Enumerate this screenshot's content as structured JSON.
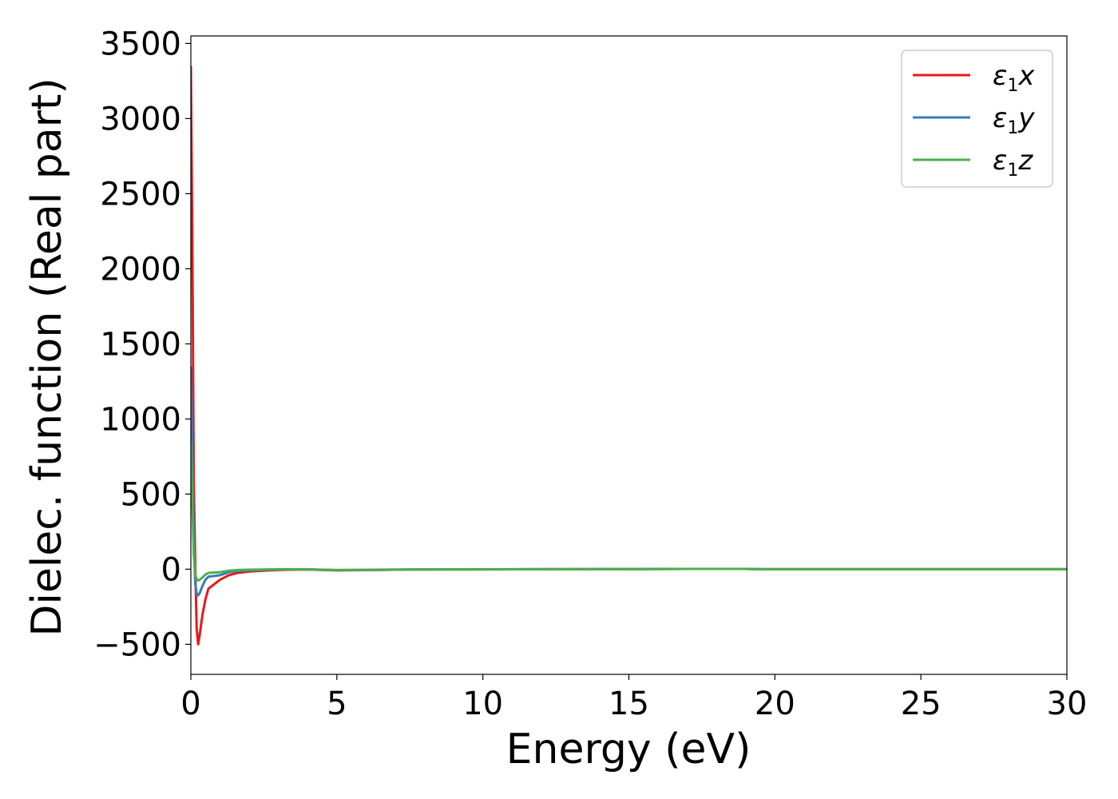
{
  "chart_data": {
    "type": "line",
    "title": "",
    "xlabel": "Energy (eV)",
    "ylabel": "Dielec. function (Real part)",
    "xlim": [
      0,
      30
    ],
    "ylim": [
      -700,
      3550
    ],
    "xticks": [
      0,
      5,
      10,
      15,
      20,
      25,
      30
    ],
    "yticks": [
      -500,
      0,
      500,
      1000,
      1500,
      2000,
      2500,
      3000,
      3500
    ],
    "ytick_labels": [
      "−500",
      "0",
      "500",
      "1000",
      "1500",
      "2000",
      "2500",
      "3000",
      "3500"
    ],
    "grid": false,
    "legend_position": "top-right",
    "series": [
      {
        "name": "ε1x",
        "name_symbol": "ε",
        "name_sub": "1",
        "name_var": "x",
        "color": "#e41a1c",
        "x": [
          0.0,
          0.05,
          0.1,
          0.15,
          0.2,
          0.25,
          0.3,
          0.4,
          0.5,
          0.6,
          0.8,
          1.0,
          1.3,
          1.6,
          2.0,
          2.5,
          3.0,
          3.5,
          4.0,
          4.5,
          5.0,
          6.0,
          7.0,
          8.0,
          10.0,
          12.0,
          15.0,
          17.0,
          19.0,
          19.5,
          20.0,
          25.0,
          30.0
        ],
        "y": [
          3350,
          2200,
          600,
          20,
          -400,
          -500,
          -440,
          -300,
          -200,
          -130,
          -100,
          -70,
          -40,
          -25,
          -15,
          -10,
          -5,
          -3,
          -2,
          -5,
          -8,
          -6,
          -3,
          -2,
          -1,
          0,
          1,
          2,
          2,
          0,
          0,
          0,
          0
        ]
      },
      {
        "name": "ε1y",
        "name_symbol": "ε",
        "name_sub": "1",
        "name_var": "y",
        "color": "#377eb8",
        "x": [
          0.0,
          0.05,
          0.1,
          0.15,
          0.2,
          0.25,
          0.3,
          0.4,
          0.5,
          0.6,
          0.8,
          1.0,
          1.3,
          1.6,
          2.0,
          2.5,
          3.0,
          3.5,
          4.0,
          4.5,
          5.0,
          6.0,
          7.0,
          8.0,
          10.0,
          12.0,
          15.0,
          17.0,
          19.0,
          19.5,
          20.0,
          25.0,
          30.0
        ],
        "y": [
          1350,
          800,
          200,
          -100,
          -160,
          -175,
          -160,
          -110,
          -70,
          -50,
          -45,
          -40,
          -20,
          -12,
          -8,
          -5,
          -2,
          -1,
          -1,
          -4,
          -6,
          -5,
          -3,
          -2,
          -1,
          0,
          1,
          2,
          2,
          0,
          0,
          0,
          0
        ]
      },
      {
        "name": "ε1z",
        "name_symbol": "ε",
        "name_sub": "1",
        "name_var": "z",
        "color": "#4daf4a",
        "x": [
          0.0,
          0.05,
          0.1,
          0.15,
          0.2,
          0.25,
          0.3,
          0.4,
          0.5,
          0.6,
          0.8,
          1.0,
          1.3,
          1.6,
          2.0,
          2.5,
          3.0,
          3.5,
          4.0,
          4.5,
          5.0,
          6.0,
          7.0,
          8.0,
          10.0,
          12.0,
          15.0,
          17.0,
          19.0,
          19.5,
          20.0,
          25.0,
          30.0
        ],
        "y": [
          850,
          450,
          100,
          -40,
          -65,
          -75,
          -70,
          -55,
          -35,
          -25,
          -22,
          -20,
          -10,
          -5,
          -3,
          -2,
          0,
          0,
          0,
          -3,
          -5,
          -4,
          -2,
          -1,
          0,
          0,
          1,
          2,
          2,
          0,
          0,
          0,
          0
        ]
      }
    ]
  }
}
